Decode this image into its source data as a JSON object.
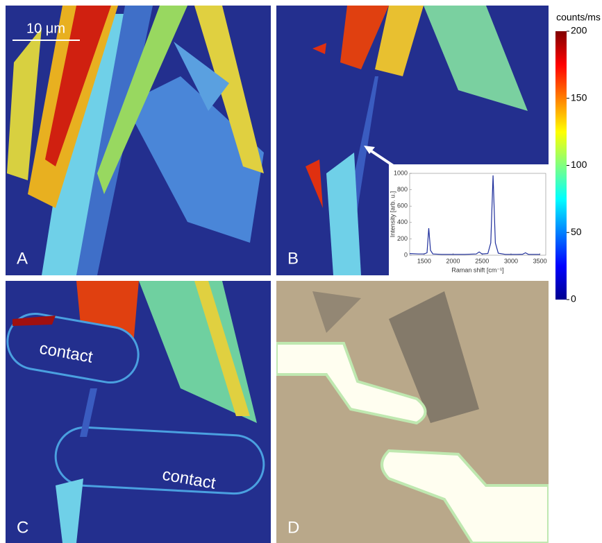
{
  "panels": [
    {
      "label": "A"
    },
    {
      "label": "B"
    },
    {
      "label": "C"
    },
    {
      "label": "D"
    }
  ],
  "scale_bar": "10 μm",
  "contact_labels": [
    "contact",
    "contact"
  ],
  "colorbar": {
    "label": "counts/ms",
    "lim": [
      0,
      200
    ],
    "ticks": [
      0,
      50,
      100,
      150,
      200
    ]
  },
  "chart_data": {
    "type": "line",
    "xlabel": "Raman shift [cm⁻¹]",
    "ylabel": "Intensity [arb. u.]",
    "x": [
      1250,
      1400,
      1500,
      1550,
      1580,
      1610,
      1650,
      1800,
      2000,
      2200,
      2400,
      2450,
      2500,
      2600,
      2650,
      2690,
      2730,
      2780,
      2900,
      3100,
      3200,
      3250,
      3300,
      3500
    ],
    "series": [
      {
        "color": "#1f2f9c",
        "values": [
          20,
          15,
          15,
          30,
          330,
          60,
          15,
          10,
          10,
          10,
          15,
          40,
          15,
          20,
          150,
          975,
          150,
          25,
          10,
          10,
          12,
          30,
          10,
          10
        ]
      }
    ],
    "xlim": [
      1250,
      3600
    ],
    "xticks": [
      1500,
      2000,
      2500,
      3000,
      3500
    ],
    "ylim": [
      0,
      1000
    ],
    "yticks": [
      0,
      200,
      400,
      600,
      800,
      1000
    ]
  }
}
